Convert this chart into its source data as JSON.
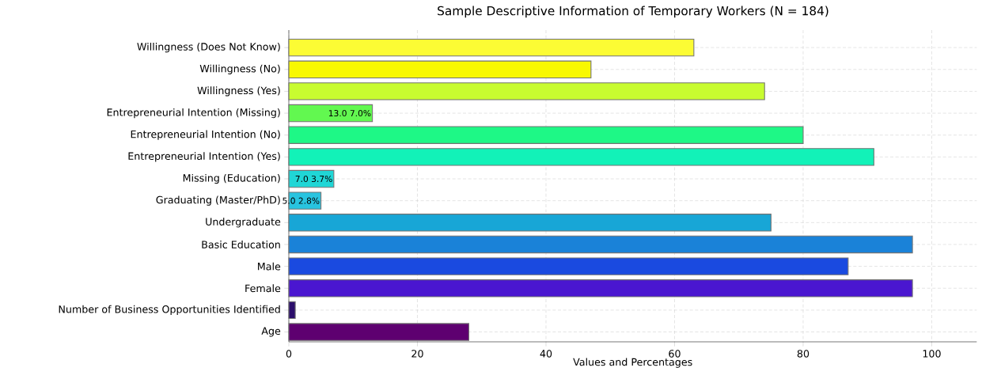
{
  "chart_data": {
    "type": "bar",
    "orientation": "horizontal",
    "title": "Sample Descriptive Information of Temporary Workers (N = 184)",
    "xlabel": "Values and Percentages",
    "categories": [
      "Willingness (Does Not Know)",
      "Willingness (No)",
      "Willingness (Yes)",
      "Entrepreneurial Intention (Missing)",
      "Entrepreneurial Intention (No)",
      "Entrepreneurial Intention (Yes)",
      "Missing (Education)",
      "Graduating (Master/PhD)",
      "Undergraduate",
      "Basic Education",
      "Male",
      "Female",
      "Number of Business Opportunities Identified",
      "Age"
    ],
    "values": [
      63,
      47,
      74,
      13,
      80,
      91,
      7,
      5,
      75,
      97,
      87,
      97,
      1,
      28
    ],
    "value_labels": [
      null,
      null,
      null,
      "13.0 7.0%",
      null,
      null,
      "7.0 3.7%",
      "5.0 2.8%",
      null,
      null,
      null,
      null,
      null,
      null
    ],
    "colors": [
      "#fcfc34",
      "#f8f800",
      "#c8fc30",
      "#62f850",
      "#1ef886",
      "#12f2b8",
      "#20d6d6",
      "#28c4e0",
      "#18a6d6",
      "#1a82d8",
      "#1a4ae0",
      "#4a16d0",
      "#2c0e6c",
      "#5e0070"
    ],
    "xlim": [
      0,
      107
    ],
    "xticks": [
      0,
      20,
      40,
      60,
      80,
      100
    ],
    "grid": true
  }
}
